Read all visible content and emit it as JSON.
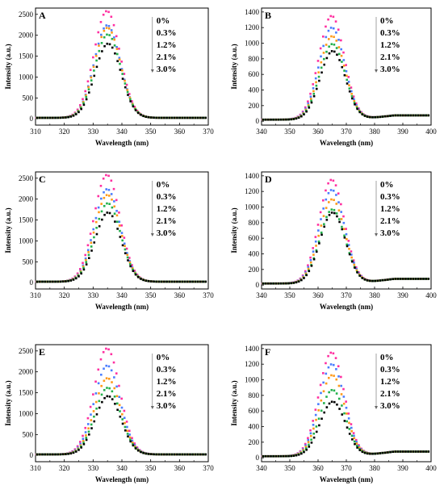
{
  "colors": {
    "series": [
      "#ff2fa0",
      "#4a7dff",
      "#ff9a1a",
      "#22b14c",
      "#000000"
    ],
    "axis": "#000000"
  },
  "legend_entries": [
    "0%",
    "0.3%",
    "1.2%",
    "2.1%",
    "3.0%"
  ],
  "chart_data": [
    {
      "type": "scatter",
      "panel_label": "A",
      "xlabel": "Wavelength (nm)",
      "ylabel": "Intensity (a.u.)",
      "xlim": [
        310,
        370
      ],
      "ylim": [
        -150,
        2650
      ],
      "xticks": [
        310,
        320,
        330,
        340,
        350,
        360,
        370
      ],
      "yticks": [
        0,
        500,
        1000,
        1500,
        2000,
        2500
      ],
      "peak_x": 335,
      "peak_width": 4.5,
      "baseline": 25,
      "series": [
        {
          "name": "0%",
          "peak": 2580
        },
        {
          "name": "0.3%",
          "peak": 2240
        },
        {
          "name": "1.2%",
          "peak": 2180
        },
        {
          "name": "2.1%",
          "peak": 2020
        },
        {
          "name": "3.0%",
          "peak": 1800
        }
      ],
      "grid": false
    },
    {
      "type": "scatter",
      "panel_label": "B",
      "xlabel": "Wavelength (nm)",
      "ylabel": "Intensity (a.u.)",
      "xlim": [
        340,
        400
      ],
      "ylim": [
        -50,
        1450
      ],
      "xticks": [
        340,
        350,
        360,
        370,
        380,
        390,
        400
      ],
      "yticks": [
        0,
        200,
        400,
        600,
        800,
        1000,
        1200,
        1400
      ],
      "peak_x": 365,
      "peak_width": 4.5,
      "baseline": 20,
      "tail": 75,
      "series": [
        {
          "name": "0%",
          "peak": 1350
        },
        {
          "name": "0.3%",
          "peak": 1200
        },
        {
          "name": "1.2%",
          "peak": 1090
        },
        {
          "name": "2.1%",
          "peak": 990
        },
        {
          "name": "3.0%",
          "peak": 900
        }
      ],
      "grid": false
    },
    {
      "type": "scatter",
      "panel_label": "C",
      "xlabel": "Wavelength (nm)",
      "ylabel": "Intensity (a.u.)",
      "xlim": [
        310,
        370
      ],
      "ylim": [
        -150,
        2650
      ],
      "xticks": [
        310,
        320,
        330,
        340,
        350,
        360,
        370
      ],
      "yticks": [
        0,
        500,
        1000,
        1500,
        2000,
        2500
      ],
      "peak_x": 335,
      "peak_width": 4.5,
      "baseline": 25,
      "series": [
        {
          "name": "0%",
          "peak": 2580
        },
        {
          "name": "0.3%",
          "peak": 2240
        },
        {
          "name": "1.2%",
          "peak": 2100
        },
        {
          "name": "2.1%",
          "peak": 1900
        },
        {
          "name": "3.0%",
          "peak": 1680
        }
      ],
      "grid": false
    },
    {
      "type": "scatter",
      "panel_label": "D",
      "xlabel": "Wavelength (nm)",
      "ylabel": "Intensity (a.u.)",
      "xlim": [
        340,
        400
      ],
      "ylim": [
        -50,
        1450
      ],
      "xticks": [
        340,
        350,
        360,
        370,
        380,
        390,
        400
      ],
      "yticks": [
        0,
        200,
        400,
        600,
        800,
        1000,
        1200,
        1400
      ],
      "peak_x": 365,
      "peak_width": 4.5,
      "baseline": 20,
      "tail": 80,
      "series": [
        {
          "name": "0%",
          "peak": 1350
        },
        {
          "name": "0.3%",
          "peak": 1220
        },
        {
          "name": "1.2%",
          "peak": 1100
        },
        {
          "name": "2.1%",
          "peak": 970
        },
        {
          "name": "3.0%",
          "peak": 930
        }
      ],
      "grid": false
    },
    {
      "type": "scatter",
      "panel_label": "E",
      "xlabel": "Wavelength (nm)",
      "ylabel": "Intensity (a.u.)",
      "xlim": [
        310,
        370
      ],
      "ylim": [
        -150,
        2650
      ],
      "xticks": [
        310,
        320,
        330,
        340,
        350,
        360,
        370
      ],
      "yticks": [
        0,
        500,
        1000,
        1500,
        2000,
        2500
      ],
      "peak_x": 335,
      "peak_width": 4.5,
      "baseline": 25,
      "series": [
        {
          "name": "0%",
          "peak": 2560
        },
        {
          "name": "0.3%",
          "peak": 2150
        },
        {
          "name": "1.2%",
          "peak": 1850
        },
        {
          "name": "2.1%",
          "peak": 1620
        },
        {
          "name": "3.0%",
          "peak": 1420
        }
      ],
      "grid": false
    },
    {
      "type": "scatter",
      "panel_label": "F",
      "xlabel": "Wavelength (nm)",
      "ylabel": "Intensity (a.u.)",
      "xlim": [
        340,
        400
      ],
      "ylim": [
        -50,
        1450
      ],
      "xticks": [
        340,
        350,
        360,
        370,
        380,
        390,
        400
      ],
      "yticks": [
        0,
        200,
        400,
        600,
        800,
        1000,
        1200,
        1400
      ],
      "peak_x": 365,
      "peak_width": 4.5,
      "baseline": 20,
      "tail": 80,
      "series": [
        {
          "name": "0%",
          "peak": 1350
        },
        {
          "name": "0.3%",
          "peak": 1200
        },
        {
          "name": "1.2%",
          "peak": 1060
        },
        {
          "name": "2.1%",
          "peak": 870
        },
        {
          "name": "3.0%",
          "peak": 720
        }
      ],
      "grid": false
    }
  ]
}
